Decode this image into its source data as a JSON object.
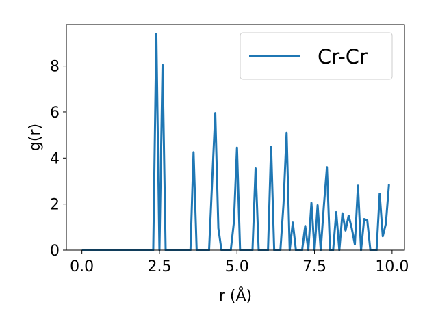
{
  "chart_data": {
    "type": "line",
    "xlabel": "r (Å)",
    "ylabel": "g(r)",
    "xlim": [
      -0.5,
      10.4
    ],
    "ylim": [
      0,
      9.8
    ],
    "xticks": [
      "0.0",
      "2.5",
      "5.0",
      "7.5",
      "10.0"
    ],
    "xtick_values": [
      0,
      2.5,
      5,
      7.5,
      10
    ],
    "yticks": [
      "0",
      "2",
      "4",
      "6",
      "8"
    ],
    "ytick_values": [
      0,
      2,
      4,
      6,
      8
    ],
    "grid": false,
    "legend_position": "top-right",
    "series": [
      {
        "name": "Cr-Cr",
        "color": "#1f77b4",
        "x": [
          0,
          0.1,
          0.2,
          0.3,
          0.4,
          0.5,
          0.6,
          0.7,
          0.8,
          0.9,
          1.0,
          1.1,
          1.2,
          1.3,
          1.4,
          1.5,
          1.6,
          1.7,
          1.8,
          1.9,
          2.0,
          2.1,
          2.2,
          2.3,
          2.4,
          2.5,
          2.6,
          2.7,
          2.8,
          2.9,
          3.0,
          3.1,
          3.2,
          3.3,
          3.4,
          3.5,
          3.6,
          3.7,
          3.8,
          3.9,
          4.0,
          4.1,
          4.2,
          4.3,
          4.4,
          4.5,
          4.6,
          4.7,
          4.8,
          4.9,
          5.0,
          5.1,
          5.2,
          5.3,
          5.4,
          5.5,
          5.6,
          5.7,
          5.8,
          5.9,
          6.0,
          6.1,
          6.2,
          6.3,
          6.4,
          6.5,
          6.6,
          6.7,
          6.8,
          6.9,
          7.0,
          7.1,
          7.2,
          7.3,
          7.4,
          7.5,
          7.6,
          7.7,
          7.8,
          7.9,
          8.0,
          8.1,
          8.2,
          8.3,
          8.4,
          8.5,
          8.6,
          8.7,
          8.8,
          8.9,
          9.0,
          9.1,
          9.2,
          9.3,
          9.4,
          9.5,
          9.6,
          9.7,
          9.8,
          9.9
        ],
        "y": [
          0,
          0,
          0,
          0,
          0,
          0,
          0,
          0,
          0,
          0,
          0,
          0,
          0,
          0,
          0,
          0,
          0,
          0,
          0,
          0,
          0,
          0,
          0,
          0,
          9.4,
          0,
          8.05,
          0,
          0,
          0,
          0,
          0,
          0,
          0,
          0,
          0,
          4.25,
          0,
          0,
          0,
          0,
          0,
          3.0,
          5.95,
          0.95,
          0,
          0,
          0,
          0,
          1.2,
          4.45,
          0,
          0,
          0,
          0,
          0,
          3.55,
          0,
          0,
          0,
          0,
          4.5,
          0,
          0,
          0,
          2.0,
          5.1,
          0,
          1.2,
          0,
          0,
          0,
          1.05,
          0,
          2.05,
          0,
          1.95,
          0,
          1.9,
          3.6,
          0,
          0,
          1.65,
          0,
          1.6,
          0.85,
          1.5,
          0.95,
          0.25,
          2.8,
          0,
          1.35,
          1.3,
          0,
          0,
          0,
          2.45,
          0.6,
          1.15,
          2.85
        ]
      }
    ]
  }
}
